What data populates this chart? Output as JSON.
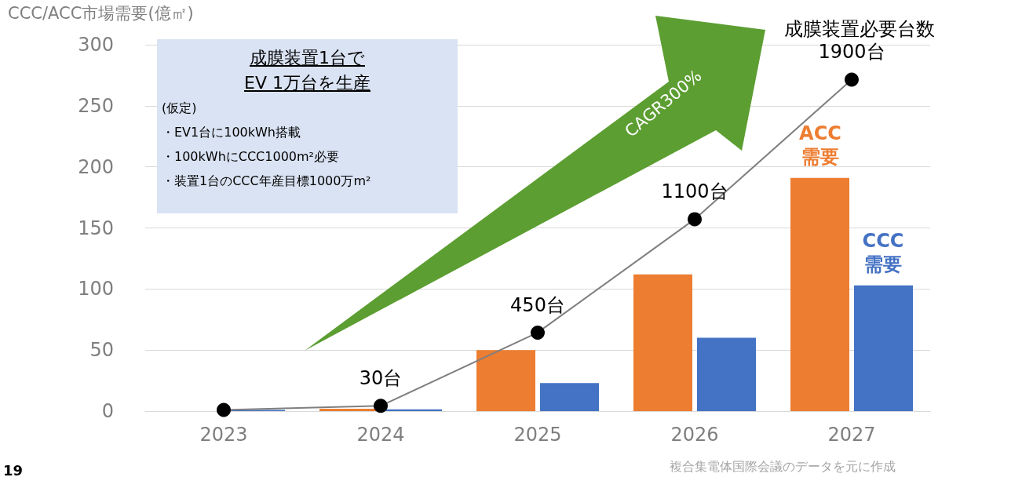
{
  "chart_data": {
    "type": "bar",
    "ylabel": "CCC/ACC市場需要(億㎡)",
    "categories": [
      "2023",
      "2024",
      "2025",
      "2026",
      "2027"
    ],
    "series": [
      {
        "name": "ACC 需要",
        "color": "#ed7d31",
        "values": [
          0,
          2,
          50,
          112,
          191
        ]
      },
      {
        "name": "CCC 需要",
        "color": "#4472c4",
        "values": [
          1,
          1.5,
          23,
          60,
          103
        ]
      },
      {
        "name": "成膜装置必要台数",
        "type": "line",
        "axis": "y2",
        "color": "#7f7f7f",
        "values": [
          7,
          30,
          450,
          1100,
          1900
        ],
        "value_labels": [
          null,
          "30台",
          "450台",
          "1100台",
          "1900台"
        ]
      }
    ],
    "ylim": [
      0,
      300
    ],
    "yticks": [
      0,
      50,
      100,
      150,
      200,
      250,
      300
    ],
    "grid": "y",
    "marker": "circle",
    "line_style": "solid",
    "annotations": [
      "成膜装置1台で",
      "EV 1万台を生産",
      "(仮定)",
      "・EV1台に100kWh搭載",
      "・100kWhにCCC1000m²必要",
      "・装置1台のCCC年産目標1000万m²",
      "CAGR300%",
      "複合集電体国際会議のデータを元に作成",
      "19"
    ]
  }
}
